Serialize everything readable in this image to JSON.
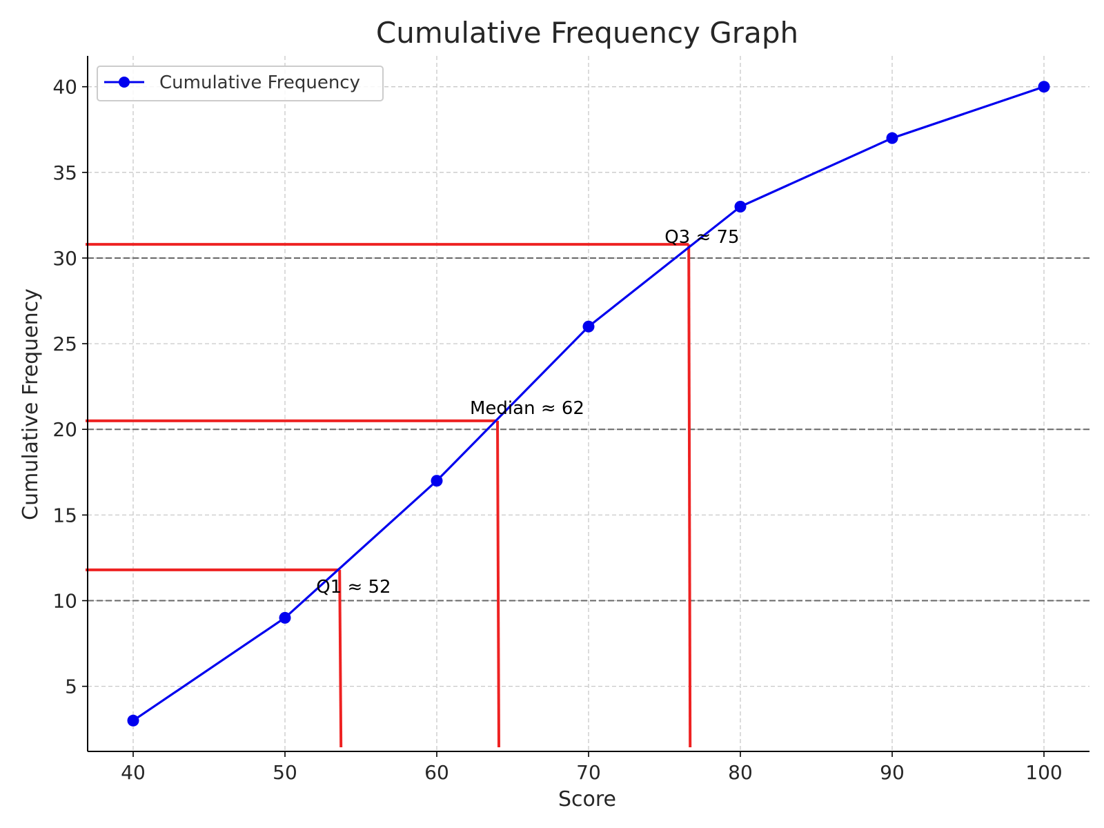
{
  "chart_data": {
    "type": "line",
    "title": "Cumulative Frequency Graph",
    "xlabel": "Score",
    "ylabel": "Cumulative Frequency",
    "xlim": [
      37,
      103
    ],
    "ylim": [
      1.2,
      41.8
    ],
    "x_ticks": [
      40,
      50,
      60,
      70,
      80,
      90,
      100
    ],
    "y_ticks": [
      5,
      10,
      15,
      20,
      25,
      30,
      35,
      40
    ],
    "grid": true,
    "legend_position": "top-left",
    "series": [
      {
        "name": "Cumulative Frequency",
        "color": "#0000ee",
        "marker": "circle",
        "x": [
          40,
          50,
          60,
          70,
          80,
          90,
          100
        ],
        "values": [
          3,
          9,
          17,
          26,
          33,
          37,
          40
        ]
      }
    ],
    "reference_lines": [
      {
        "type": "horizontal",
        "y": 10,
        "style": "dashed",
        "color": "#666666"
      },
      {
        "type": "horizontal",
        "y": 20,
        "style": "dashed",
        "color": "#666666"
      },
      {
        "type": "horizontal",
        "y": 30,
        "style": "dashed",
        "color": "#666666"
      }
    ],
    "quartile_markers": [
      {
        "label": "Q1 ≈ 52",
        "x": 53.6,
        "y": 11.8,
        "color": "#ee2222"
      },
      {
        "label": "Median ≈ 62",
        "x": 64.0,
        "y": 20.5,
        "color": "#ee2222"
      },
      {
        "label": "Q3 ≈ 75",
        "x": 76.6,
        "y": 30.8,
        "color": "#ee2222"
      }
    ]
  }
}
